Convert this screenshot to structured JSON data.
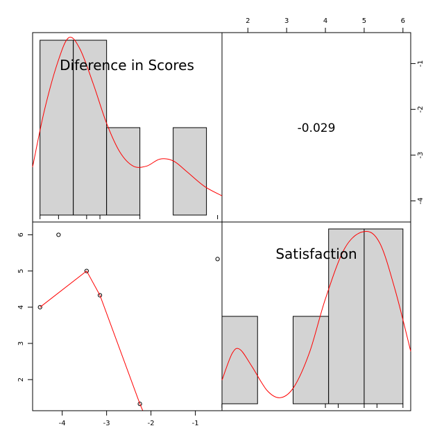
{
  "chart_data": {
    "type": "scatter",
    "variables": [
      "Diference in Scores",
      "Satisfaction"
    ],
    "correlation": "-0.029",
    "axes": {
      "diff": {
        "ticks": [
          -4,
          -3,
          -2,
          -1
        ],
        "tick_labels": [
          "-4",
          "-3",
          "-2",
          "-1"
        ],
        "range": [
          -4.667,
          -0.4
        ]
      },
      "sat": {
        "ticks": [
          2,
          3,
          4,
          5,
          6
        ],
        "tick_labels": [
          "2",
          "3",
          "4",
          "5",
          "6"
        ],
        "range": [
          1.333,
          6.2
        ]
      }
    },
    "points": [
      {
        "diff": -4.5,
        "sat": 4.0
      },
      {
        "diff": -4.083,
        "sat": 6.0
      },
      {
        "diff": -3.45,
        "sat": 5.0
      },
      {
        "diff": -3.15,
        "sat": 4.33
      },
      {
        "diff": -2.25,
        "sat": 1.33
      },
      {
        "diff": -0.5,
        "sat": 5.33
      }
    ],
    "smooth_line": [
      {
        "diff": -4.5,
        "sat": 4.0
      },
      {
        "diff": -3.45,
        "sat": 5.0
      },
      {
        "diff": -3.15,
        "sat": 4.33
      },
      {
        "diff": -2.25,
        "sat": 1.33
      },
      {
        "diff": -2.1,
        "sat": 0.9
      }
    ],
    "diff_histogram": {
      "bins": [
        {
          "from": -4.5,
          "to": -3.75,
          "count": 2
        },
        {
          "from": -3.75,
          "to": -3.0,
          "count": 2
        },
        {
          "from": -3.0,
          "to": -2.25,
          "count": 1
        },
        {
          "from": -2.25,
          "to": -1.5,
          "count": 0
        },
        {
          "from": -1.5,
          "to": -0.75,
          "count": 1
        }
      ],
      "density": [
        {
          "x": -4.667,
          "y": 0.55
        },
        {
          "x": -4.4,
          "y": 1.2
        },
        {
          "x": -4.1,
          "y": 1.75
        },
        {
          "x": -3.85,
          "y": 2.03
        },
        {
          "x": -3.6,
          "y": 1.9
        },
        {
          "x": -3.3,
          "y": 1.5
        },
        {
          "x": -3.0,
          "y": 1.05
        },
        {
          "x": -2.7,
          "y": 0.72
        },
        {
          "x": -2.4,
          "y": 0.56
        },
        {
          "x": -2.1,
          "y": 0.56
        },
        {
          "x": -1.8,
          "y": 0.64
        },
        {
          "x": -1.5,
          "y": 0.62
        },
        {
          "x": -1.2,
          "y": 0.5
        },
        {
          "x": -0.8,
          "y": 0.33
        },
        {
          "x": -0.4,
          "y": 0.22
        }
      ]
    },
    "sat_histogram": {
      "bins": [
        {
          "from": 1.333,
          "to": 2.25,
          "count": 1
        },
        {
          "from": 2.25,
          "to": 3.167,
          "count": 0
        },
        {
          "from": 3.167,
          "to": 4.083,
          "count": 1
        },
        {
          "from": 4.083,
          "to": 5.0,
          "count": 2
        },
        {
          "from": 5.0,
          "to": 6.0,
          "count": 2
        }
      ],
      "density": [
        {
          "x": 1.333,
          "y": 0.27
        },
        {
          "x": 1.6,
          "y": 0.58
        },
        {
          "x": 1.8,
          "y": 0.62
        },
        {
          "x": 2.1,
          "y": 0.43
        },
        {
          "x": 2.5,
          "y": 0.15
        },
        {
          "x": 2.85,
          "y": 0.07
        },
        {
          "x": 3.2,
          "y": 0.2
        },
        {
          "x": 3.6,
          "y": 0.6
        },
        {
          "x": 4.0,
          "y": 1.2
        },
        {
          "x": 4.5,
          "y": 1.78
        },
        {
          "x": 5.0,
          "y": 1.97
        },
        {
          "x": 5.4,
          "y": 1.84
        },
        {
          "x": 5.8,
          "y": 1.3
        },
        {
          "x": 6.2,
          "y": 0.6
        }
      ]
    },
    "rug": {
      "diff": [
        -4.5,
        -4.083,
        -3.45,
        -3.15,
        -2.25,
        -0.5
      ],
      "sat": [
        1.33,
        4.0,
        4.33,
        5.0,
        5.33,
        6.0
      ]
    }
  }
}
